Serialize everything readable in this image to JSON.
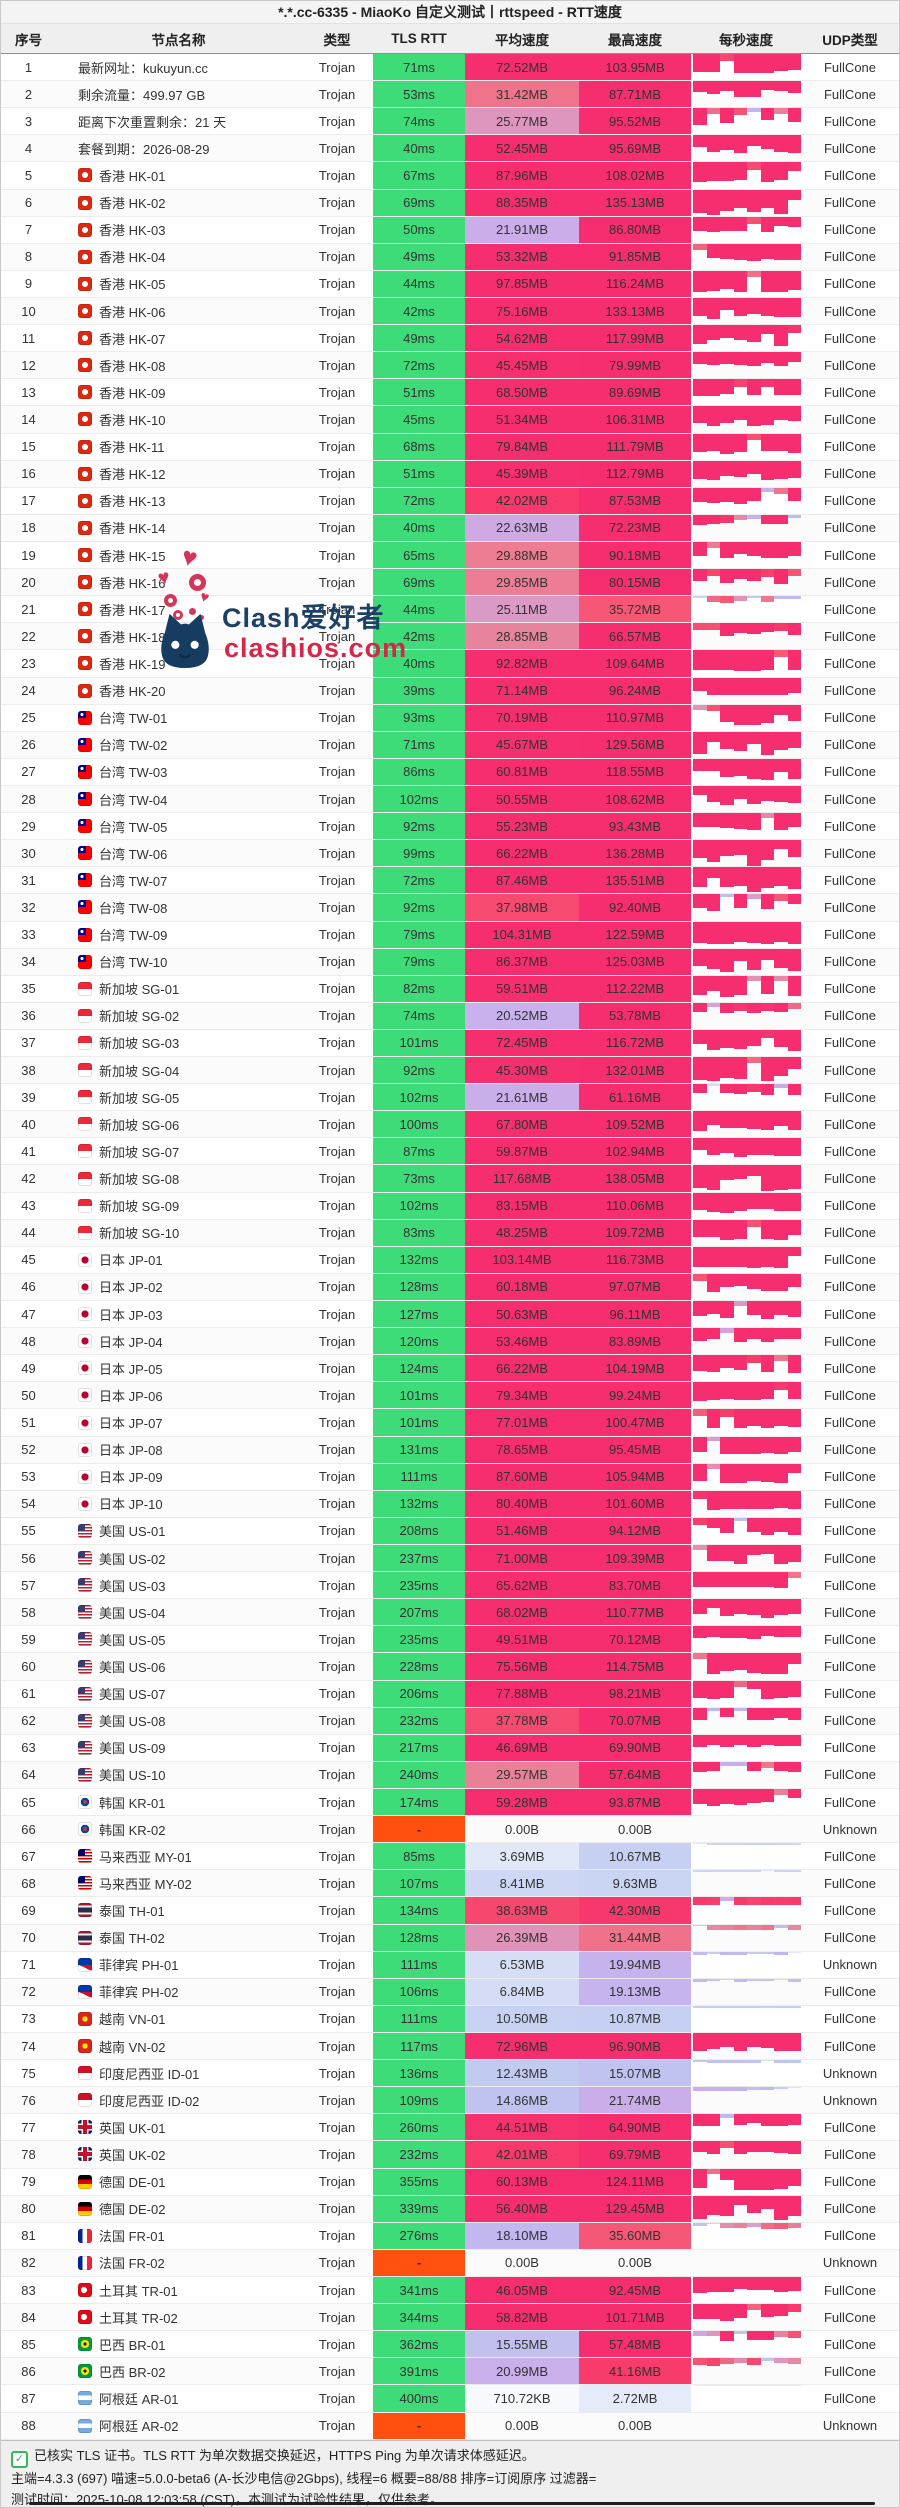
{
  "title": "*.*.cc-6335 - MiaoKo 自定义测试丨rttspeed - RTT速度",
  "columns": [
    "序号",
    "节点名称",
    "类型",
    "TLS RTT",
    "平均速度",
    "最高速度",
    "每秒速度",
    "UDP类型"
  ],
  "type_default": "Trojan",
  "watermark": {
    "title": "Clash爱好者",
    "domain": "clashios.com",
    "heart_glyph": "♥"
  },
  "footer": {
    "check_glyph": "✓",
    "line1": "已核实 TLS 证书。TLS RTT 为单次数据交换延迟，HTTPS Ping 为单次请求体感延迟。",
    "line2": "主端=4.3.3 (697) 喵速=5.0.0-beta6 (A-长沙电信@2Gbps), 线程=6 概要=88/88 排序=订阅原序 过滤器=",
    "line3": "测试时间：2025-10-08 12:03:58 (CST)，本测试为试验性结果，仅供参考。"
  },
  "colors": {
    "rtt_green": "#3edc78",
    "rtt_fail_orange": "#ff500f",
    "watermark_navy": "#1d4066",
    "watermark_red": "#d2284b",
    "speed_scale": [
      [
        0,
        "#ffffff"
      ],
      [
        2,
        "#e8eef9"
      ],
      [
        8,
        "#cfd9f4"
      ],
      [
        13,
        "#bfc9f0"
      ],
      [
        18,
        "#c2b7ef"
      ],
      [
        22,
        "#cbadea"
      ],
      [
        26,
        "#df95bc"
      ],
      [
        30,
        "#ec7c92"
      ],
      [
        35,
        "#f55b77"
      ],
      [
        40,
        "#f73f6b"
      ],
      [
        46,
        "#f62e6f"
      ]
    ]
  },
  "rows": [
    [
      "最新网址：kukuyun.cc",
      "",
      "71ms",
      "72.52MB",
      "103.95MB",
      "FullCone"
    ],
    [
      "剩余流量：499.97 GB",
      "",
      "53ms",
      "31.42MB",
      "87.71MB",
      "FullCone"
    ],
    [
      "距离下次重置剩余：21 天",
      "",
      "74ms",
      "25.77MB",
      "95.52MB",
      "FullCone"
    ],
    [
      "套餐到期：2026-08-29",
      "",
      "40ms",
      "52.45MB",
      "95.69MB",
      "FullCone"
    ],
    [
      "香港 HK-01",
      "hk",
      "67ms",
      "87.96MB",
      "108.02MB",
      "FullCone"
    ],
    [
      "香港 HK-02",
      "hk",
      "69ms",
      "88.35MB",
      "135.13MB",
      "FullCone"
    ],
    [
      "香港 HK-03",
      "hk",
      "50ms",
      "21.91MB",
      "86.80MB",
      "FullCone"
    ],
    [
      "香港 HK-04",
      "hk",
      "49ms",
      "53.32MB",
      "91.85MB",
      "FullCone"
    ],
    [
      "香港 HK-05",
      "hk",
      "44ms",
      "97.85MB",
      "116.24MB",
      "FullCone"
    ],
    [
      "香港 HK-06",
      "hk",
      "42ms",
      "75.16MB",
      "133.13MB",
      "FullCone"
    ],
    [
      "香港 HK-07",
      "hk",
      "49ms",
      "54.62MB",
      "117.99MB",
      "FullCone"
    ],
    [
      "香港 HK-08",
      "hk",
      "72ms",
      "45.45MB",
      "79.99MB",
      "FullCone"
    ],
    [
      "香港 HK-09",
      "hk",
      "51ms",
      "68.50MB",
      "89.69MB",
      "FullCone"
    ],
    [
      "香港 HK-10",
      "hk",
      "45ms",
      "51.34MB",
      "106.31MB",
      "FullCone"
    ],
    [
      "香港 HK-11",
      "hk",
      "68ms",
      "79.84MB",
      "111.79MB",
      "FullCone"
    ],
    [
      "香港 HK-12",
      "hk",
      "51ms",
      "45.39MB",
      "112.79MB",
      "FullCone"
    ],
    [
      "香港 HK-13",
      "hk",
      "72ms",
      "42.02MB",
      "87.53MB",
      "FullCone"
    ],
    [
      "香港 HK-14",
      "hk",
      "40ms",
      "22.63MB",
      "72.23MB",
      "FullCone"
    ],
    [
      "香港 HK-15",
      "hk",
      "65ms",
      "29.88MB",
      "90.18MB",
      "FullCone"
    ],
    [
      "香港 HK-16",
      "hk",
      "69ms",
      "29.85MB",
      "80.15MB",
      "FullCone"
    ],
    [
      "香港 HK-17",
      "hk",
      "44ms",
      "25.11MB",
      "35.72MB",
      "FullCone"
    ],
    [
      "香港 HK-18",
      "hk",
      "42ms",
      "28.85MB",
      "66.57MB",
      "FullCone"
    ],
    [
      "香港 HK-19",
      "hk",
      "40ms",
      "92.82MB",
      "109.64MB",
      "FullCone"
    ],
    [
      "香港 HK-20",
      "hk",
      "39ms",
      "71.14MB",
      "96.24MB",
      "FullCone"
    ],
    [
      "台湾 TW-01",
      "tw",
      "93ms",
      "70.19MB",
      "110.97MB",
      "FullCone"
    ],
    [
      "台湾 TW-02",
      "tw",
      "71ms",
      "45.67MB",
      "129.56MB",
      "FullCone"
    ],
    [
      "台湾 TW-03",
      "tw",
      "86ms",
      "60.81MB",
      "118.55MB",
      "FullCone"
    ],
    [
      "台湾 TW-04",
      "tw",
      "102ms",
      "50.55MB",
      "108.62MB",
      "FullCone"
    ],
    [
      "台湾 TW-05",
      "tw",
      "92ms",
      "55.23MB",
      "93.43MB",
      "FullCone"
    ],
    [
      "台湾 TW-06",
      "tw",
      "99ms",
      "66.22MB",
      "136.28MB",
      "FullCone"
    ],
    [
      "台湾 TW-07",
      "tw",
      "72ms",
      "87.46MB",
      "135.51MB",
      "FullCone"
    ],
    [
      "台湾 TW-08",
      "tw",
      "92ms",
      "37.98MB",
      "92.40MB",
      "FullCone"
    ],
    [
      "台湾 TW-09",
      "tw",
      "79ms",
      "104.31MB",
      "122.59MB",
      "FullCone"
    ],
    [
      "台湾 TW-10",
      "tw",
      "79ms",
      "86.37MB",
      "125.03MB",
      "FullCone"
    ],
    [
      "新加坡 SG-01",
      "sg",
      "82ms",
      "59.51MB",
      "112.22MB",
      "FullCone"
    ],
    [
      "新加坡 SG-02",
      "sg",
      "74ms",
      "20.52MB",
      "53.78MB",
      "FullCone"
    ],
    [
      "新加坡 SG-03",
      "sg",
      "101ms",
      "72.45MB",
      "116.72MB",
      "FullCone"
    ],
    [
      "新加坡 SG-04",
      "sg",
      "92ms",
      "45.30MB",
      "132.01MB",
      "FullCone"
    ],
    [
      "新加坡 SG-05",
      "sg",
      "102ms",
      "21.61MB",
      "61.16MB",
      "FullCone"
    ],
    [
      "新加坡 SG-06",
      "sg",
      "100ms",
      "67.80MB",
      "109.52MB",
      "FullCone"
    ],
    [
      "新加坡 SG-07",
      "sg",
      "87ms",
      "59.87MB",
      "102.94MB",
      "FullCone"
    ],
    [
      "新加坡 SG-08",
      "sg",
      "73ms",
      "117.68MB",
      "138.05MB",
      "FullCone"
    ],
    [
      "新加坡 SG-09",
      "sg",
      "102ms",
      "83.15MB",
      "110.06MB",
      "FullCone"
    ],
    [
      "新加坡 SG-10",
      "sg",
      "83ms",
      "48.25MB",
      "109.72MB",
      "FullCone"
    ],
    [
      "日本 JP-01",
      "jp",
      "132ms",
      "103.14MB",
      "116.73MB",
      "FullCone"
    ],
    [
      "日本 JP-02",
      "jp",
      "128ms",
      "60.18MB",
      "97.07MB",
      "FullCone"
    ],
    [
      "日本 JP-03",
      "jp",
      "127ms",
      "50.63MB",
      "96.11MB",
      "FullCone"
    ],
    [
      "日本 JP-04",
      "jp",
      "120ms",
      "53.46MB",
      "83.89MB",
      "FullCone"
    ],
    [
      "日本 JP-05",
      "jp",
      "124ms",
      "66.22MB",
      "104.19MB",
      "FullCone"
    ],
    [
      "日本 JP-06",
      "jp",
      "101ms",
      "79.34MB",
      "99.24MB",
      "FullCone"
    ],
    [
      "日本 JP-07",
      "jp",
      "101ms",
      "77.01MB",
      "100.47MB",
      "FullCone"
    ],
    [
      "日本 JP-08",
      "jp",
      "131ms",
      "78.65MB",
      "95.45MB",
      "FullCone"
    ],
    [
      "日本 JP-09",
      "jp",
      "111ms",
      "87.60MB",
      "105.94MB",
      "FullCone"
    ],
    [
      "日本 JP-10",
      "jp",
      "132ms",
      "80.40MB",
      "101.60MB",
      "FullCone"
    ],
    [
      "美国 US-01",
      "us",
      "208ms",
      "51.46MB",
      "94.12MB",
      "FullCone"
    ],
    [
      "美国 US-02",
      "us",
      "237ms",
      "71.00MB",
      "109.39MB",
      "FullCone"
    ],
    [
      "美国 US-03",
      "us",
      "235ms",
      "65.62MB",
      "83.70MB",
      "FullCone"
    ],
    [
      "美国 US-04",
      "us",
      "207ms",
      "68.02MB",
      "110.77MB",
      "FullCone"
    ],
    [
      "美国 US-05",
      "us",
      "235ms",
      "49.51MB",
      "70.12MB",
      "FullCone"
    ],
    [
      "美国 US-06",
      "us",
      "228ms",
      "75.56MB",
      "114.75MB",
      "FullCone"
    ],
    [
      "美国 US-07",
      "us",
      "206ms",
      "77.88MB",
      "98.21MB",
      "FullCone"
    ],
    [
      "美国 US-08",
      "us",
      "232ms",
      "37.78MB",
      "70.07MB",
      "FullCone"
    ],
    [
      "美国 US-09",
      "us",
      "217ms",
      "46.69MB",
      "69.90MB",
      "FullCone"
    ],
    [
      "美国 US-10",
      "us",
      "240ms",
      "29.57MB",
      "57.64MB",
      "FullCone"
    ],
    [
      "韩国 KR-01",
      "kr",
      "174ms",
      "59.28MB",
      "93.87MB",
      "FullCone"
    ],
    [
      "韩国 KR-02",
      "kr",
      "-",
      "0.00B",
      "0.00B",
      "Unknown"
    ],
    [
      "马来西亚 MY-01",
      "my",
      "85ms",
      "3.69MB",
      "10.67MB",
      "FullCone"
    ],
    [
      "马来西亚 MY-02",
      "my",
      "107ms",
      "8.41MB",
      "9.63MB",
      "FullCone"
    ],
    [
      "泰国 TH-01",
      "th",
      "134ms",
      "38.63MB",
      "42.30MB",
      "FullCone"
    ],
    [
      "泰国 TH-02",
      "th",
      "128ms",
      "26.39MB",
      "31.44MB",
      "FullCone"
    ],
    [
      "菲律宾 PH-01",
      "ph",
      "111ms",
      "6.53MB",
      "19.94MB",
      "Unknown"
    ],
    [
      "菲律宾 PH-02",
      "ph",
      "106ms",
      "6.84MB",
      "19.13MB",
      "FullCone"
    ],
    [
      "越南 VN-01",
      "vn",
      "111ms",
      "10.50MB",
      "10.87MB",
      "FullCone"
    ],
    [
      "越南 VN-02",
      "vn",
      "117ms",
      "72.96MB",
      "96.90MB",
      "FullCone"
    ],
    [
      "印度尼西亚 ID-01",
      "id",
      "136ms",
      "12.43MB",
      "15.07MB",
      "Unknown"
    ],
    [
      "印度尼西亚 ID-02",
      "id",
      "109ms",
      "14.86MB",
      "21.74MB",
      "Unknown"
    ],
    [
      "英国 UK-01",
      "gb",
      "260ms",
      "44.51MB",
      "64.90MB",
      "FullCone"
    ],
    [
      "英国 UK-02",
      "gb",
      "232ms",
      "42.01MB",
      "69.79MB",
      "FullCone"
    ],
    [
      "德国 DE-01",
      "de",
      "355ms",
      "60.13MB",
      "124.11MB",
      "FullCone"
    ],
    [
      "德国 DE-02",
      "de",
      "339ms",
      "56.40MB",
      "129.45MB",
      "FullCone"
    ],
    [
      "法国 FR-01",
      "fr",
      "276ms",
      "18.10MB",
      "35.60MB",
      "FullCone"
    ],
    [
      "法国 FR-02",
      "fr",
      "-",
      "0.00B",
      "0.00B",
      "Unknown"
    ],
    [
      "土耳其 TR-01",
      "tr",
      "341ms",
      "46.05MB",
      "92.45MB",
      "FullCone"
    ],
    [
      "土耳其 TR-02",
      "tr",
      "344ms",
      "58.82MB",
      "101.71MB",
      "FullCone"
    ],
    [
      "巴西 BR-01",
      "br",
      "362ms",
      "15.55MB",
      "57.48MB",
      "FullCone"
    ],
    [
      "巴西 BR-02",
      "br",
      "391ms",
      "20.99MB",
      "41.16MB",
      "FullCone"
    ],
    [
      "阿根廷 AR-01",
      "ar",
      "400ms",
      "710.72KB",
      "2.72MB",
      "FullCone"
    ],
    [
      "阿根廷 AR-02",
      "ar",
      "-",
      "0.00B",
      "0.00B",
      "Unknown"
    ]
  ]
}
